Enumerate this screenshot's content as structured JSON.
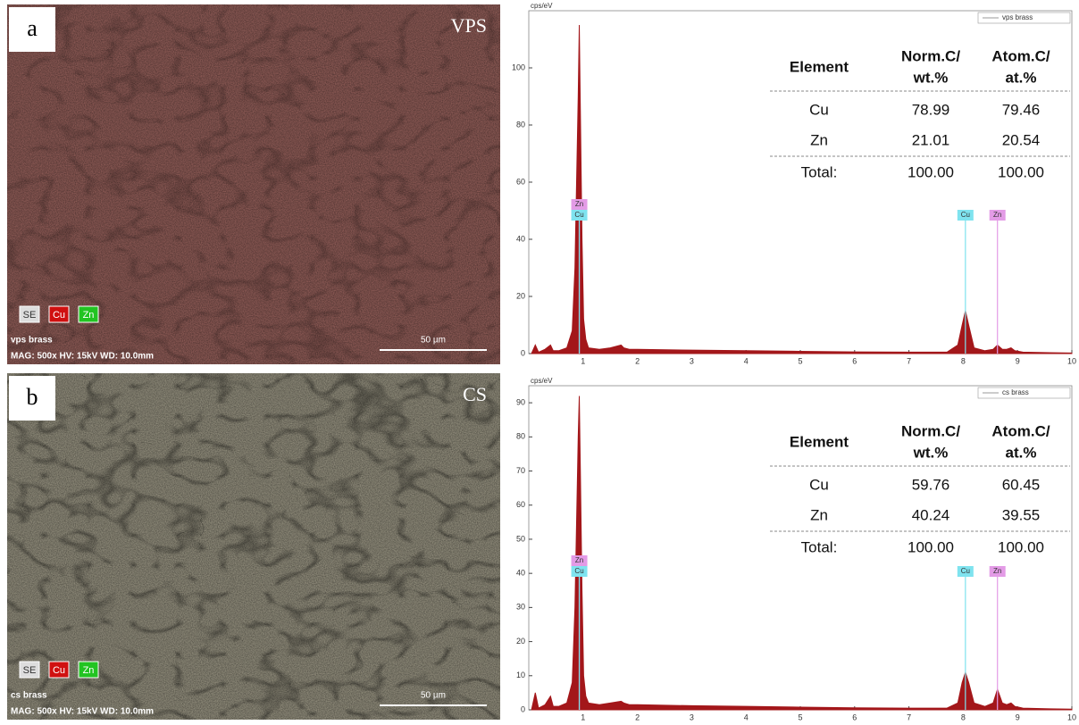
{
  "images": [
    {
      "label": "a",
      "method": "VPS",
      "channels": [
        "SE",
        "Cu",
        "Zn"
      ],
      "sample": "vps brass",
      "info": "MAG: 500x  HV: 15kV  WD: 10.0mm",
      "scale": "50 µm"
    },
    {
      "label": "b",
      "method": "CS",
      "channels": [
        "SE",
        "Cu",
        "Zn"
      ],
      "sample": "cs brass",
      "info": "MAG: 500x  HV: 15kV  WD: 10.0mm",
      "scale": "50 µm"
    }
  ],
  "chart_data": [
    {
      "type": "area",
      "y_label": "cps/eV",
      "legend": "vps brass",
      "color": "#a3171a",
      "x": [
        0.05,
        0.12,
        0.18,
        0.3,
        0.4,
        0.45,
        0.55,
        0.7,
        0.8,
        0.85,
        0.88,
        0.91,
        0.93,
        0.95,
        0.98,
        1.01,
        1.05,
        1.1,
        1.3,
        1.5,
        1.7,
        1.75,
        1.85,
        2.0,
        3.0,
        4.0,
        5.0,
        6.0,
        7.0,
        7.7,
        7.9,
        7.98,
        8.04,
        8.1,
        8.2,
        8.4,
        8.55,
        8.63,
        8.72,
        8.8,
        8.88,
        8.95,
        9.1,
        9.6,
        10
      ],
      "values": [
        0,
        3,
        0.5,
        1.5,
        3,
        1,
        1,
        2,
        8,
        30,
        60,
        90,
        115,
        85,
        40,
        12,
        5,
        2,
        1.5,
        2,
        3,
        2,
        1.5,
        1.5,
        1.2,
        1.0,
        0.8,
        0.6,
        0.5,
        0.5,
        3,
        10,
        15,
        10,
        2,
        1,
        1.5,
        3,
        1.5,
        1.5,
        2,
        1,
        0.5,
        0.3,
        0.2
      ],
      "xlim": [
        0,
        10
      ],
      "xticks": [
        1,
        2,
        3,
        4,
        5,
        6,
        7,
        8,
        9,
        10
      ],
      "ylim": [
        0,
        120
      ],
      "yticks": [
        0,
        20,
        40,
        60,
        80,
        100
      ],
      "peak_labels": [
        {
          "label": "Zn",
          "x": 0.93,
          "color": "#e39be6"
        },
        {
          "label": "Cu",
          "x": 0.93,
          "color": "#7fe3ef"
        },
        {
          "label": "Cu",
          "x": 8.04,
          "color": "#7fe3ef"
        },
        {
          "label": "Zn",
          "x": 8.63,
          "color": "#e39be6"
        }
      ],
      "table": {
        "header": [
          [
            "Element"
          ],
          [
            "Norm.C/",
            "wt.%"
          ],
          [
            "Atom.C/",
            "at.%"
          ]
        ],
        "rows": [
          [
            "Cu",
            "78.99",
            "79.46"
          ],
          [
            "Zn",
            "21.01",
            "20.54"
          ],
          [
            "Total:",
            "100.00",
            "100.00"
          ]
        ]
      }
    },
    {
      "type": "area",
      "y_label": "cps/eV",
      "legend": "cs brass",
      "color": "#a3171a",
      "x": [
        0.05,
        0.12,
        0.18,
        0.3,
        0.4,
        0.45,
        0.55,
        0.7,
        0.8,
        0.85,
        0.88,
        0.91,
        0.93,
        0.95,
        0.98,
        1.01,
        1.05,
        1.1,
        1.3,
        1.5,
        1.7,
        1.75,
        1.85,
        2.0,
        3.0,
        4.0,
        5.0,
        6.0,
        7.0,
        7.7,
        7.9,
        7.98,
        8.04,
        8.1,
        8.2,
        8.4,
        8.55,
        8.63,
        8.72,
        8.8,
        8.88,
        8.95,
        9.1,
        9.6,
        10
      ],
      "values": [
        0,
        5,
        0.5,
        1.5,
        4,
        1,
        1,
        2,
        8,
        30,
        55,
        80,
        92,
        70,
        35,
        10,
        4,
        2,
        1.5,
        2,
        2.5,
        2,
        1.5,
        1.5,
        1.2,
        1,
        0.8,
        0.6,
        0.5,
        0.5,
        2,
        8,
        11,
        8,
        2,
        1,
        2,
        6,
        2,
        1.5,
        2,
        1,
        0.5,
        0.3,
        0.2
      ],
      "xlim": [
        0,
        10
      ],
      "xticks": [
        1,
        2,
        3,
        4,
        5,
        6,
        7,
        8,
        9,
        10
      ],
      "ylim": [
        0,
        95
      ],
      "yticks": [
        0,
        10,
        20,
        30,
        40,
        50,
        60,
        70,
        80,
        90
      ],
      "peak_labels": [
        {
          "label": "Zn",
          "x": 0.93,
          "color": "#e39be6"
        },
        {
          "label": "Cu",
          "x": 0.93,
          "color": "#7fe3ef"
        },
        {
          "label": "Cu",
          "x": 8.04,
          "color": "#7fe3ef"
        },
        {
          "label": "Zn",
          "x": 8.63,
          "color": "#e39be6"
        }
      ],
      "table": {
        "header": [
          [
            "Element"
          ],
          [
            "Norm.C/",
            "wt.%"
          ],
          [
            "Atom.C/",
            "at.%"
          ]
        ],
        "rows": [
          [
            "Cu",
            "59.76",
            "60.45"
          ],
          [
            "Zn",
            "40.24",
            "39.55"
          ],
          [
            "Total:",
            "100.00",
            "100.00"
          ]
        ]
      }
    }
  ]
}
